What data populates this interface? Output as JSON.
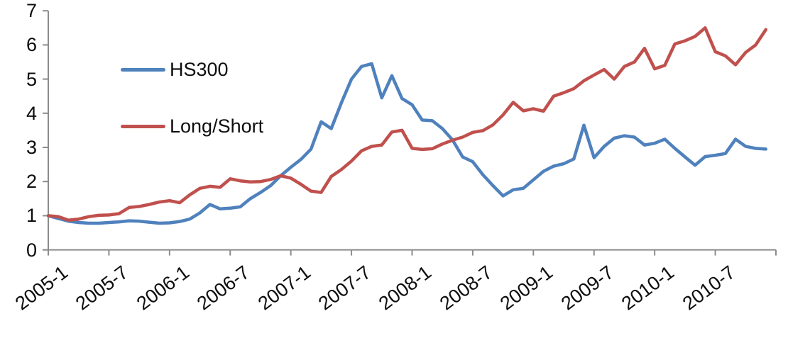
{
  "chart_data": {
    "type": "line",
    "title": "",
    "x_start": "2005-1",
    "x_end": "2010-12",
    "x_interval": "monthly",
    "x_tick_interval_months": 6,
    "x_tick_labels": [
      "2005-1",
      "2005-7",
      "2006-1",
      "2006-7",
      "2007-1",
      "2007-7",
      "2008-1",
      "2008-7",
      "2009-1",
      "2009-7",
      "2010-1",
      "2010-7"
    ],
    "y_ticks": [
      0,
      1,
      2,
      3,
      4,
      5,
      6,
      7
    ],
    "ylim": [
      0,
      7
    ],
    "grid": false,
    "legend_position": "inside-top-left",
    "axis_color": "#8c8c8c",
    "text_color": "#0d0d0d",
    "series": [
      {
        "name": "HS300",
        "color": "#4F81BD",
        "values": [
          1.0,
          0.92,
          0.84,
          0.8,
          0.78,
          0.78,
          0.8,
          0.82,
          0.85,
          0.84,
          0.81,
          0.78,
          0.79,
          0.83,
          0.9,
          1.08,
          1.33,
          1.2,
          1.22,
          1.26,
          1.5,
          1.68,
          1.88,
          2.17,
          2.42,
          2.65,
          2.95,
          3.75,
          3.55,
          4.3,
          5.0,
          5.37,
          5.45,
          4.45,
          5.1,
          4.43,
          4.25,
          3.8,
          3.78,
          3.55,
          3.22,
          2.72,
          2.58,
          2.2,
          1.88,
          1.58,
          1.76,
          1.8,
          2.05,
          2.3,
          2.45,
          2.52,
          2.66,
          3.65,
          2.7,
          3.03,
          3.27,
          3.34,
          3.3,
          3.07,
          3.12,
          3.24,
          2.97,
          2.72,
          2.48,
          2.73,
          2.77,
          2.82,
          3.24,
          3.03,
          2.97,
          2.95
        ]
      },
      {
        "name": "Long/Short",
        "color": "#C0504D",
        "values": [
          1.0,
          0.97,
          0.87,
          0.9,
          0.97,
          1.01,
          1.02,
          1.06,
          1.24,
          1.27,
          1.33,
          1.4,
          1.44,
          1.38,
          1.61,
          1.8,
          1.86,
          1.83,
          2.08,
          2.02,
          1.99,
          2.0,
          2.06,
          2.17,
          2.1,
          1.92,
          1.72,
          1.68,
          2.15,
          2.35,
          2.6,
          2.9,
          3.03,
          3.07,
          3.45,
          3.5,
          2.97,
          2.94,
          2.96,
          3.1,
          3.21,
          3.3,
          3.44,
          3.49,
          3.66,
          3.95,
          4.32,
          4.07,
          4.13,
          4.06,
          4.5,
          4.6,
          4.72,
          4.95,
          5.12,
          5.28,
          5.0,
          5.37,
          5.5,
          5.9,
          5.3,
          5.4,
          6.03,
          6.12,
          6.25,
          6.5,
          5.8,
          5.68,
          5.42,
          5.78,
          6.0,
          6.45
        ]
      }
    ]
  }
}
